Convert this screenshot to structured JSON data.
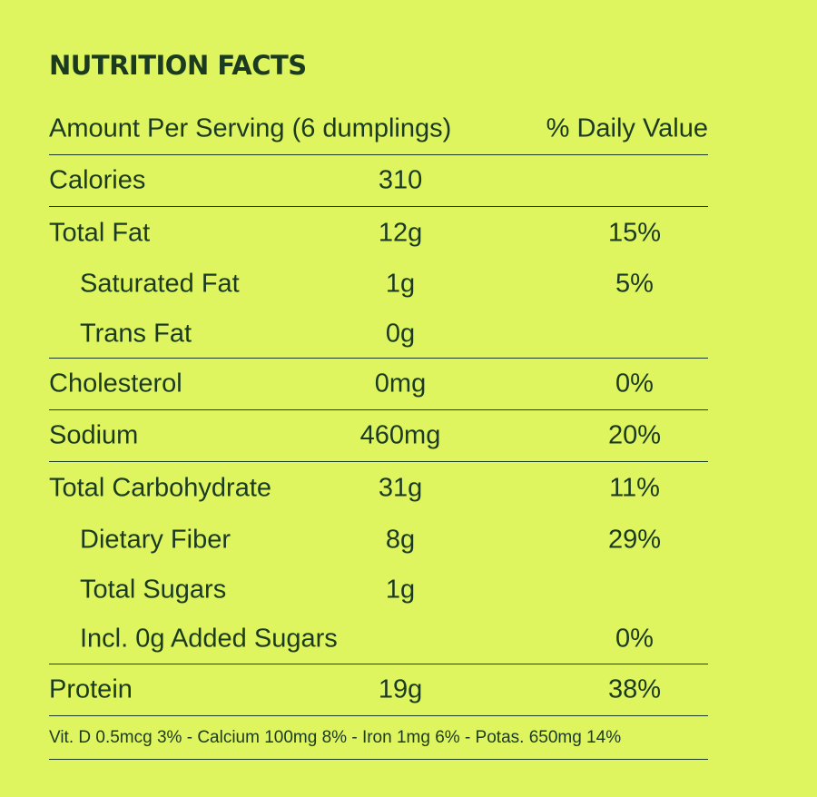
{
  "colors": {
    "background": "#dff55f",
    "text": "#1b3a22"
  },
  "title": "NUTRITION FACTS",
  "header": {
    "serving": "Amount Per Serving (6 dumplings)",
    "daily_value": "% Daily Value"
  },
  "rows": [
    {
      "name": "Calories",
      "amount": "310",
      "dv": ""
    },
    {
      "name": "Total Fat",
      "amount": "12g",
      "dv": "15%"
    },
    {
      "name": "Saturated Fat",
      "amount": "1g",
      "dv": "5%"
    },
    {
      "name": "Trans Fat",
      "amount": "0g",
      "dv": ""
    },
    {
      "name": "Cholesterol",
      "amount": "0mg",
      "dv": "0%"
    },
    {
      "name": "Sodium",
      "amount": "460mg",
      "dv": "20%"
    },
    {
      "name": "Total Carbohydrate",
      "amount": "31g",
      "dv": "11%"
    },
    {
      "name": "Dietary Fiber",
      "amount": "8g",
      "dv": "29%"
    },
    {
      "name": "Total Sugars",
      "amount": "1g",
      "dv": ""
    },
    {
      "name": "Incl. 0g Added Sugars",
      "amount": "",
      "dv": "0%"
    },
    {
      "name": "Protein",
      "amount": "19g",
      "dv": "38%"
    }
  ],
  "footer": "Vit. D 0.5mcg 3% - Calcium 100mg 8% - Iron 1mg 6% - Potas. 650mg 14%"
}
